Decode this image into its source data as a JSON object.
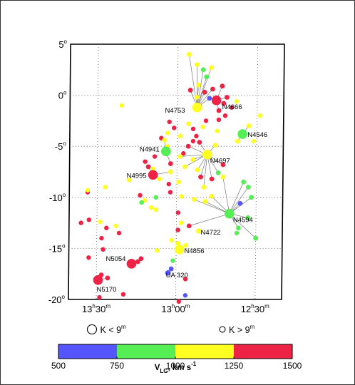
{
  "chart_data": {
    "type": "scatter",
    "title": "",
    "xlabel": "",
    "ylabel": "",
    "x_unit": "RA",
    "y_unit": "Dec (deg)",
    "xlim_hours": [
      13.675,
      12.333
    ],
    "ylim": [
      -20,
      5
    ],
    "x_ticks": [
      {
        "value": 13.5,
        "label_h": "13",
        "label_sup_h": "h",
        "label_m": "30",
        "label_sup_m": "m"
      },
      {
        "value": 13.0,
        "label_h": "13",
        "label_sup_h": "h",
        "label_m": "00",
        "label_sup_m": "m"
      },
      {
        "value": 12.5,
        "label_h": "12",
        "label_sup_h": "h",
        "label_m": "30",
        "label_sup_m": "m"
      }
    ],
    "y_ticks": [
      {
        "value": 5,
        "label": "5",
        "sup": "o"
      },
      {
        "value": 0,
        "label": "0",
        "sup": "o"
      },
      {
        "value": -5,
        "label": "-5",
        "sup": "o"
      },
      {
        "value": -10,
        "label": "-10",
        "sup": "o"
      },
      {
        "value": -15,
        "label": "-15",
        "sup": "o"
      },
      {
        "value": -20,
        "label": "-20",
        "sup": "o"
      }
    ],
    "grid": "dotted",
    "colorbar": {
      "label_main": "V",
      "label_sub": "LG",
      "label_rest": ", km s",
      "label_sup": "-1",
      "ticks": [
        "500",
        "750",
        "1000",
        "1250",
        "1500"
      ],
      "bins": [
        {
          "range": [
            500,
            750
          ],
          "color": "#5555ff"
        },
        {
          "range": [
            750,
            1000
          ],
          "color": "#55ee55"
        },
        {
          "range": [
            1000,
            1250
          ],
          "color": "#ffff22"
        },
        {
          "range": [
            1250,
            1500
          ],
          "color": "#ee2244"
        }
      ]
    },
    "legend": [
      {
        "size": "large",
        "text": "K < 9",
        "sup": "m"
      },
      {
        "size": "small",
        "text": "K > 9",
        "sup": "m"
      }
    ],
    "groups": [
      {
        "name": "N4753",
        "ra": 12.877,
        "dec": -1.2,
        "v": 1180,
        "big": true,
        "members": [
          [
            12.93,
            4.0,
            1180
          ],
          [
            12.88,
            3.0,
            1020
          ],
          [
            12.84,
            2.5,
            900
          ],
          [
            12.82,
            1.8,
            820
          ],
          [
            12.79,
            2.7,
            1100
          ],
          [
            12.87,
            1.0,
            1050
          ],
          [
            12.83,
            0.3,
            1300
          ],
          [
            12.78,
            0.6,
            1320
          ],
          [
            12.92,
            0.5,
            1350
          ],
          [
            12.88,
            -0.2,
            1150
          ],
          [
            12.8,
            -0.3,
            700
          ]
        ]
      },
      {
        "name": "N4666",
        "ra": 12.756,
        "dec": -0.5,
        "v": 1320,
        "big": true,
        "members": [
          [
            12.72,
            0.9,
            1360
          ],
          [
            12.71,
            -0.8,
            1280
          ],
          [
            12.74,
            -1.5,
            1300
          ],
          [
            12.69,
            -0.2,
            1400
          ]
        ]
      },
      {
        "name": "N4546",
        "ra": 12.59,
        "dec": -3.8,
        "v": 900,
        "big": true,
        "members": [
          [
            12.62,
            -4.5,
            1050
          ],
          [
            12.55,
            -3.0,
            1120
          ]
        ]
      },
      {
        "name": "N4697",
        "ra": 12.81,
        "dec": -5.8,
        "v": 1080,
        "big": true,
        "members": [
          [
            12.93,
            -5.0,
            1300
          ],
          [
            12.9,
            -6.3,
            1100
          ],
          [
            12.95,
            -7.0,
            1200
          ],
          [
            12.87,
            -7.3,
            1150
          ],
          [
            12.85,
            -8.0,
            1320
          ],
          [
            12.83,
            -9.0,
            1080
          ],
          [
            12.78,
            -8.2,
            1380
          ],
          [
            12.74,
            -7.6,
            900
          ],
          [
            12.71,
            -6.8,
            1250
          ],
          [
            12.86,
            -4.6,
            1300
          ],
          [
            12.76,
            -4.9,
            1230
          ],
          [
            12.98,
            -6.0,
            1180
          ]
        ]
      },
      {
        "name": "N4594",
        "ra": 12.667,
        "dec": -11.6,
        "v": 880,
        "big": true,
        "members": [
          [
            12.58,
            -8.5,
            950
          ],
          [
            12.55,
            -9.0,
            900
          ],
          [
            12.53,
            -10.0,
            860
          ],
          [
            12.6,
            -10.6,
            700
          ],
          [
            12.61,
            -13.0,
            880
          ],
          [
            12.55,
            -12.0,
            900
          ],
          [
            12.5,
            -14.0,
            850
          ],
          [
            12.71,
            -8.0,
            1100
          ],
          [
            12.82,
            -10.4,
            1050
          ],
          [
            12.78,
            -9.9,
            1100
          ],
          [
            12.89,
            -10.2,
            1140
          ],
          [
            12.92,
            -12.8,
            1300
          ]
        ]
      },
      {
        "name": "N4941",
        "ra": 13.07,
        "dec": -5.5,
        "v": 870,
        "big": true,
        "members": [
          [
            13.04,
            -6.7,
            1320
          ],
          [
            13.08,
            -4.4,
            1130
          ]
        ]
      },
      {
        "name": "N4995",
        "ra": 13.15,
        "dec": -7.8,
        "v": 1330,
        "big": true,
        "members": [
          [
            13.18,
            -7.0,
            1330
          ],
          [
            13.11,
            -8.2,
            1140
          ],
          [
            13.04,
            -7.5,
            1200
          ]
        ]
      },
      {
        "name": "N4722",
        "ra": 12.86,
        "dec": -13.3,
        "v": 1150,
        "big": false,
        "members": []
      },
      {
        "name": "N4856",
        "ra": 12.98,
        "dec": -15.1,
        "v": 1130,
        "big": true,
        "members": [
          [
            12.99,
            -14.5,
            1110
          ]
        ]
      },
      {
        "name": "N5054",
        "ra": 13.28,
        "dec": -16.5,
        "v": 1370,
        "big": true,
        "members": [
          [
            13.24,
            -16.3,
            1350
          ],
          [
            13.22,
            -16.0,
            1390
          ]
        ]
      },
      {
        "name": "UA 320",
        "ra": 13.05,
        "dec": -17.4,
        "v": 560,
        "big": false,
        "members": [
          [
            13.03,
            -17.0,
            600
          ]
        ]
      },
      {
        "name": "N5170",
        "ra": 13.49,
        "dec": -18.1,
        "v": 1320,
        "big": true,
        "members": [
          [
            13.47,
            -17.6,
            1320
          ],
          [
            13.43,
            -17.9,
            1370
          ]
        ]
      }
    ],
    "field": [
      [
        13.56,
        -9.5,
        1300
      ],
      [
        13.56,
        -9.3,
        1150
      ],
      [
        13.45,
        -9.0,
        1180
      ],
      [
        13.3,
        -8.3,
        1100
      ],
      [
        13.55,
        -12.2,
        1330
      ],
      [
        13.48,
        -12.4,
        1100
      ],
      [
        13.44,
        -13.0,
        1330
      ],
      [
        13.38,
        -12.8,
        1200
      ],
      [
        13.6,
        -12.5,
        1370
      ],
      [
        13.36,
        -13.5,
        1350
      ],
      [
        13.47,
        -14.0,
        1300
      ],
      [
        13.46,
        -15.1,
        1380
      ],
      [
        13.55,
        -15.9,
        1300
      ],
      [
        13.48,
        -19.8,
        1340
      ],
      [
        13.33,
        -19.5,
        1350
      ],
      [
        13.12,
        -15.2,
        1000
      ],
      [
        13.02,
        -16.2,
        800
      ],
      [
        13.03,
        -14.2,
        1120
      ],
      [
        12.94,
        -14.7,
        1080
      ],
      [
        12.99,
        -13.2,
        1350
      ],
      [
        12.97,
        -12.5,
        1130
      ],
      [
        12.99,
        -11.5,
        1380
      ],
      [
        13.13,
        -11.2,
        1200
      ],
      [
        13.2,
        -10.3,
        1100
      ],
      [
        13.13,
        -10.0,
        900
      ],
      [
        13.16,
        -11.0,
        1100
      ],
      [
        13.22,
        -10.5,
        760
      ],
      [
        13.23,
        -9.8,
        1310
      ],
      [
        13.04,
        -9.5,
        1320
      ],
      [
        12.97,
        -9.9,
        1100
      ],
      [
        13.05,
        -8.7,
        1300
      ],
      [
        12.99,
        -8.5,
        1150
      ],
      [
        13.05,
        -2.6,
        1350
      ],
      [
        13.02,
        -3.2,
        1380
      ],
      [
        12.98,
        -4.0,
        1100
      ],
      [
        13.06,
        -3.7,
        1150
      ],
      [
        13.1,
        -4.2,
        1380
      ],
      [
        13.06,
        -5.0,
        1120
      ],
      [
        13.14,
        -6.0,
        1340
      ],
      [
        13.2,
        -6.5,
        1330
      ],
      [
        13.15,
        -7.2,
        1150
      ],
      [
        12.96,
        -5.7,
        1300
      ],
      [
        12.9,
        -4.5,
        1340
      ],
      [
        13.35,
        -1.0,
        1120
      ],
      [
        12.93,
        -2.8,
        1180
      ],
      [
        12.9,
        -3.3,
        1260
      ],
      [
        12.82,
        -2.5,
        1350
      ],
      [
        12.84,
        -3.1,
        1130
      ],
      [
        12.75,
        -3.5,
        1150
      ],
      [
        12.74,
        -2.4,
        1290
      ],
      [
        12.7,
        -2.0,
        1350
      ],
      [
        12.66,
        -1.2,
        1370
      ],
      [
        12.63,
        -0.6,
        1120
      ],
      [
        12.88,
        -4.0,
        1360
      ],
      [
        12.94,
        -18.0,
        1300
      ],
      [
        12.94,
        -19.6,
        620
      ],
      [
        12.98,
        -20.2,
        1350
      ],
      [
        12.62,
        -13.5,
        900
      ],
      [
        12.48,
        -2.0,
        1000
      ],
      [
        12.52,
        -4.5,
        1100
      ]
    ],
    "labels": {
      "N4753": "N4753",
      "N4666": "N4666",
      "N4546": "N4546",
      "N4941": "N4941",
      "N4697": "N4697",
      "N4995": "N4995",
      "N4594": "N4594",
      "N4722": "N4722",
      "N4856": "N4856",
      "N5054": "N5054",
      "UA 320": "UA 320",
      "N5170": "N5170"
    }
  }
}
